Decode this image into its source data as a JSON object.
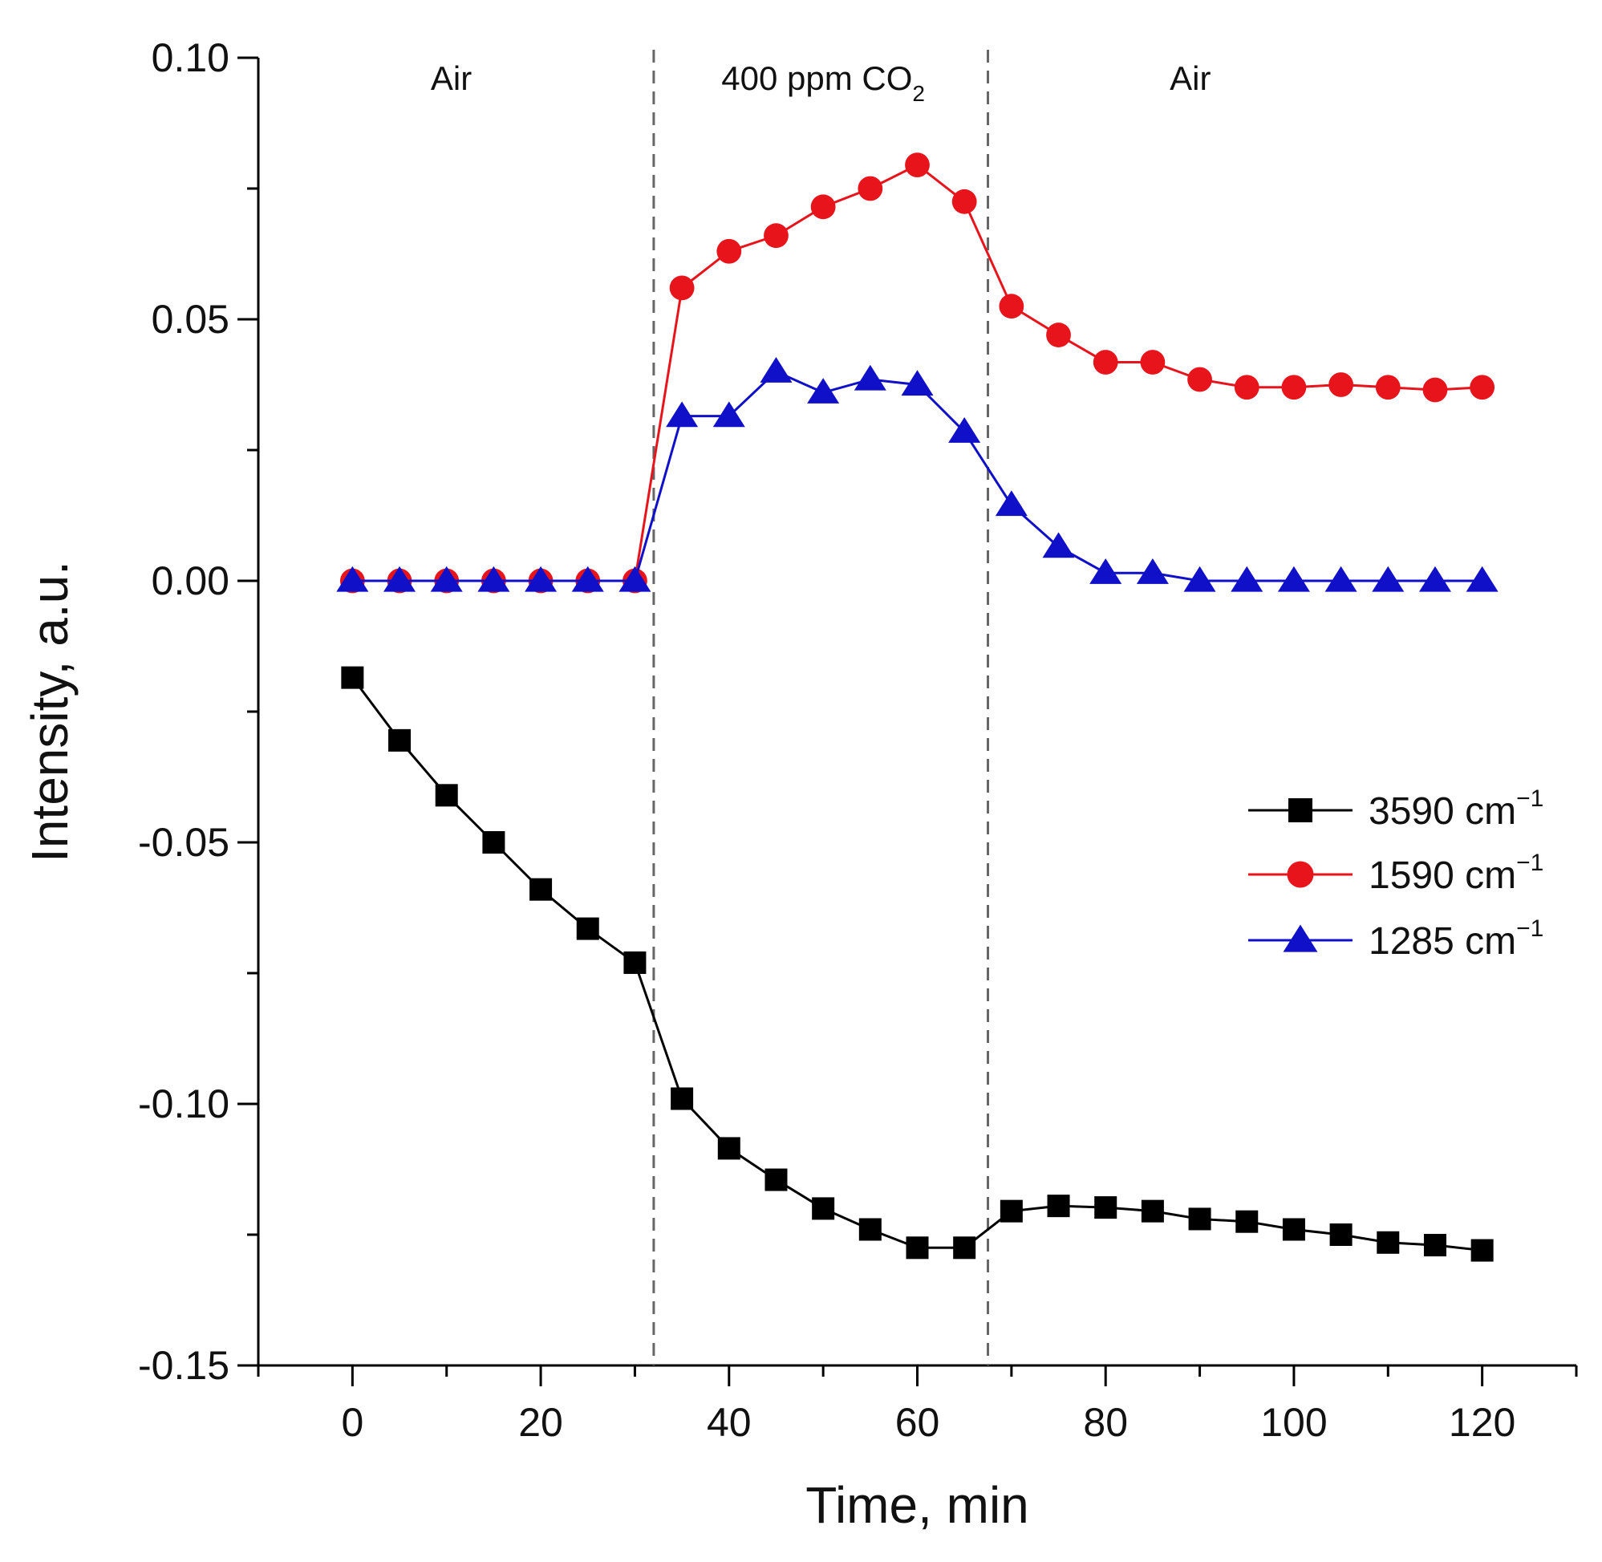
{
  "chart_data": {
    "type": "line",
    "title": "",
    "xlabel": "Time, min",
    "ylabel": "Intensity, a.u.",
    "xlim": [
      -10,
      130
    ],
    "ylim": [
      -0.15,
      0.1
    ],
    "xticks": [
      0,
      20,
      40,
      60,
      80,
      100,
      120
    ],
    "xtick_labels": [
      "0",
      "20",
      "40",
      "60",
      "80",
      "100",
      "120"
    ],
    "yticks": [
      -0.15,
      -0.1,
      -0.05,
      0.0,
      0.05,
      0.1
    ],
    "ytick_labels": [
      "-0.15",
      "-0.10",
      "-0.05",
      "0.00",
      "0.05",
      "0.10"
    ],
    "grid": false,
    "x": [
      0,
      5,
      10,
      15,
      20,
      25,
      30,
      35,
      40,
      45,
      50,
      55,
      60,
      65,
      70,
      75,
      80,
      85,
      90,
      95,
      100,
      105,
      110,
      115,
      120
    ],
    "series": [
      {
        "name": "3590 cm",
        "sup": "−1",
        "color": "#000000",
        "marker": "square",
        "values": [
          -0.0185,
          -0.0305,
          -0.041,
          -0.05,
          -0.059,
          -0.0665,
          -0.073,
          -0.099,
          -0.1085,
          -0.1145,
          -0.12,
          -0.124,
          -0.1275,
          -0.1275,
          -0.1205,
          -0.1195,
          -0.1198,
          -0.1205,
          -0.122,
          -0.1225,
          -0.124,
          -0.125,
          -0.1265,
          -0.127,
          -0.128
        ]
      },
      {
        "name": "1590 cm",
        "sup": "−1",
        "color": "#e8141c",
        "marker": "circle",
        "values": [
          0,
          0,
          0,
          0,
          0,
          0,
          0,
          0.056,
          0.063,
          0.066,
          0.0715,
          0.075,
          0.0795,
          0.0725,
          0.0525,
          0.047,
          0.0418,
          0.0418,
          0.0385,
          0.037,
          0.037,
          0.0375,
          0.037,
          0.0365,
          0.037
        ]
      },
      {
        "name": "1285 cm",
        "sup": "−1",
        "color": "#1010c8",
        "marker": "triangle",
        "values": [
          0,
          0,
          0,
          0,
          0,
          0,
          0,
          0.0315,
          0.0315,
          0.04,
          0.036,
          0.0385,
          0.0375,
          0.0285,
          0.0145,
          0.0065,
          0.0015,
          0.0015,
          0,
          0,
          0,
          0,
          0,
          0,
          0
        ]
      }
    ],
    "dividers": [
      32,
      67.5
    ],
    "regions": [
      {
        "x": 10.5,
        "label": "Air",
        "sub": ""
      },
      {
        "x": 50,
        "label": "400 ppm CO",
        "sub": "2"
      },
      {
        "x": 89,
        "label": "Air",
        "sub": ""
      }
    ],
    "legend_position": "right"
  }
}
